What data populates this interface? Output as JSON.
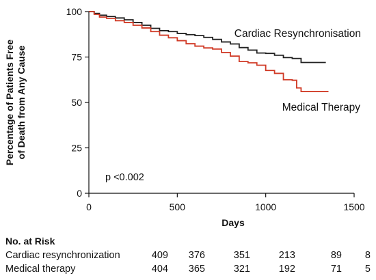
{
  "chart_data": {
    "type": "line",
    "xlabel": "Days",
    "ylabel_lines": [
      "Percentage of Patients Free",
      "of Death from Any Cause"
    ],
    "xlim": [
      0,
      1500
    ],
    "ylim": [
      0,
      100
    ],
    "x_ticks": [
      0,
      500,
      1000,
      1500
    ],
    "y_ticks": [
      0,
      25,
      50,
      75,
      100
    ],
    "annotation": "p <0.002",
    "series": [
      {
        "name": "Cardiac Resynchronisation",
        "color": "#222222",
        "x": [
          0,
          30,
          60,
          100,
          150,
          200,
          250,
          300,
          350,
          400,
          450,
          500,
          550,
          600,
          650,
          700,
          750,
          800,
          850,
          900,
          950,
          1000,
          1050,
          1100,
          1150,
          1200,
          1250,
          1300,
          1340
        ],
        "y": [
          100,
          99,
          98,
          97.3,
          96.5,
          95.5,
          94,
          92.5,
          90.8,
          89.5,
          89,
          88,
          87.3,
          86.8,
          85.8,
          84.7,
          83.3,
          82.2,
          80.2,
          78.8,
          77.2,
          77,
          76,
          74.7,
          74.2,
          72,
          72,
          72,
          72
        ]
      },
      {
        "name": "Medical Therapy",
        "color": "#d03a26",
        "x": [
          0,
          30,
          60,
          100,
          150,
          200,
          250,
          300,
          350,
          400,
          450,
          500,
          550,
          600,
          650,
          700,
          750,
          800,
          850,
          900,
          950,
          1000,
          1050,
          1100,
          1150,
          1175,
          1200,
          1250,
          1300,
          1355
        ],
        "y": [
          100,
          98.5,
          97,
          96.3,
          95,
          94,
          92.5,
          91,
          89,
          87,
          85.6,
          84,
          82.3,
          81,
          80,
          79.4,
          77.5,
          75.5,
          72.5,
          71.8,
          70.5,
          67.6,
          66,
          62.5,
          62.2,
          58,
          56,
          56,
          56,
          56
        ]
      }
    ]
  },
  "risk_table": {
    "title": "No. at Risk",
    "rows": [
      {
        "label": "Cardiac resynchronization",
        "values": [
          "409",
          "376",
          "351",
          "213",
          "89",
          "8"
        ]
      },
      {
        "label": "Medical therapy",
        "values": [
          "404",
          "365",
          "321",
          "192",
          "71",
          "5"
        ]
      }
    ]
  }
}
